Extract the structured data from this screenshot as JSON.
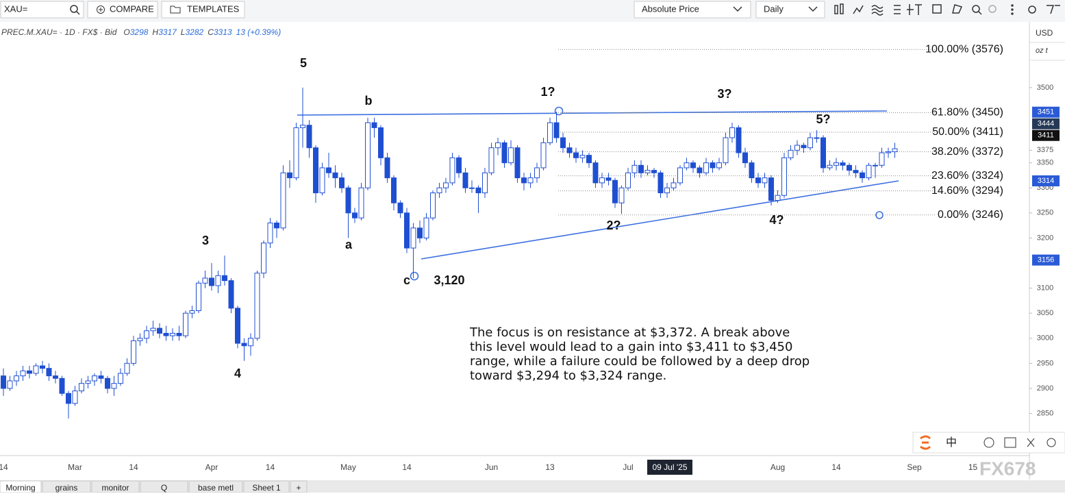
{
  "toolbar": {
    "search": "XAU=",
    "compare": "COMPARE",
    "templates": "TEMPLATES",
    "price_mode": "Absolute Price",
    "interval": "Daily"
  },
  "legend": {
    "symbol": "PREC.M.XAU= · 1D · FX$ · Bid",
    "ohlc": [
      {
        "label": "O",
        "value": "3298"
      },
      {
        "label": "H",
        "value": "3317"
      },
      {
        "label": "L",
        "value": "3282"
      },
      {
        "label": "C",
        "value": "3313"
      }
    ],
    "change": "13 (+0.39%)"
  },
  "axis_units": {
    "currency": "USD",
    "unit": "oz t"
  },
  "crosshair_date": "09 Jul '25",
  "commentary": [
    "The focus is on resistance at $3,372. A break above",
    "this level would lead to a gain into $3,411 to $3,450",
    "range, while a failure could be followed by a deep drop",
    "toward $3,294 to $3,324 range."
  ],
  "tabs": [
    "Morning",
    "grains",
    "monitor",
    "Q",
    "base metl",
    "Sheet 1",
    "+"
  ],
  "dock": {
    "lang": "中"
  },
  "watermark": "FX678",
  "chart_data": {
    "type": "candlestick",
    "categories": [
      "14",
      null,
      null,
      null,
      null,
      null,
      null,
      null,
      null,
      null,
      null,
      "Mar",
      null,
      null,
      null,
      null,
      null,
      null,
      null,
      null,
      "14",
      null,
      null,
      null,
      null,
      null,
      null,
      null,
      null,
      null,
      null,
      null,
      "Apr",
      null,
      null,
      null,
      null,
      null,
      null,
      null,
      null,
      "14",
      null,
      null,
      null,
      null,
      null,
      null,
      null,
      null,
      null,
      null,
      null,
      "May",
      null,
      null,
      null,
      null,
      null,
      null,
      null,
      null,
      "14",
      null,
      null,
      null,
      null,
      null,
      null,
      null,
      null,
      null,
      null,
      null,
      null,
      "Jun",
      null,
      null,
      null,
      null,
      null,
      null,
      null,
      null,
      "13",
      null,
      null,
      null,
      null,
      null,
      null,
      null,
      null,
      null,
      null,
      null,
      "Jul",
      null,
      null,
      null,
      null,
      null,
      null,
      null,
      null,
      null,
      null,
      null,
      null,
      null,
      null,
      null,
      null,
      null,
      null,
      null,
      null,
      null,
      null,
      "Aug",
      null,
      null,
      null,
      null,
      null,
      null,
      null,
      null,
      "14",
      null,
      null,
      null,
      null,
      null,
      null,
      null,
      null,
      null,
      null,
      null,
      "Sep",
      null,
      null,
      null,
      null,
      null,
      null,
      null,
      null,
      "15"
    ],
    "ohlc": [
      [
        2925,
        2940,
        2885,
        2900
      ],
      [
        2900,
        2925,
        2895,
        2915
      ],
      [
        2915,
        2935,
        2905,
        2925
      ],
      [
        2925,
        2945,
        2915,
        2935
      ],
      [
        2935,
        2945,
        2920,
        2930
      ],
      [
        2930,
        2950,
        2925,
        2945
      ],
      [
        2945,
        2955,
        2930,
        2940
      ],
      [
        2940,
        2950,
        2915,
        2925
      ],
      [
        2925,
        2935,
        2910,
        2920
      ],
      [
        2920,
        2925,
        2885,
        2890
      ],
      [
        2890,
        2895,
        2840,
        2870
      ],
      [
        2870,
        2905,
        2865,
        2895
      ],
      [
        2895,
        2920,
        2890,
        2910
      ],
      [
        2910,
        2925,
        2900,
        2915
      ],
      [
        2915,
        2930,
        2905,
        2925
      ],
      [
        2925,
        2935,
        2910,
        2920
      ],
      [
        2920,
        2925,
        2890,
        2900
      ],
      [
        2900,
        2925,
        2885,
        2910
      ],
      [
        2910,
        2940,
        2905,
        2930
      ],
      [
        2930,
        2960,
        2925,
        2950
      ],
      [
        2950,
        3005,
        2945,
        2995
      ],
      [
        2995,
        3010,
        2985,
        3000
      ],
      [
        3000,
        3025,
        2990,
        3015
      ],
      [
        3015,
        3035,
        3005,
        3020
      ],
      [
        3020,
        3030,
        3000,
        3010
      ],
      [
        3010,
        3025,
        2995,
        3005
      ],
      [
        3005,
        3020,
        2995,
        3010
      ],
      [
        3010,
        3025,
        2995,
        3005
      ],
      [
        3005,
        3055,
        3000,
        3050
      ],
      [
        3050,
        3065,
        3040,
        3055
      ],
      [
        3055,
        3115,
        3050,
        3110
      ],
      [
        3110,
        3135,
        3100,
        3120
      ],
      [
        3120,
        3150,
        3095,
        3105
      ],
      [
        3105,
        3135,
        3090,
        3125
      ],
      [
        3125,
        3165,
        3105,
        3115
      ],
      [
        3115,
        3120,
        3050,
        3060
      ],
      [
        3060,
        3065,
        2980,
        2990
      ],
      [
        2990,
        3000,
        2955,
        2985
      ],
      [
        2985,
        3010,
        2965,
        3000
      ],
      [
        3000,
        3135,
        2995,
        3130
      ],
      [
        3130,
        3195,
        3120,
        3190
      ],
      [
        3190,
        3240,
        3180,
        3230
      ],
      [
        3230,
        3235,
        3200,
        3220
      ],
      [
        3220,
        3345,
        3215,
        3330
      ],
      [
        3330,
        3355,
        3300,
        3320
      ],
      [
        3320,
        3430,
        3315,
        3420
      ],
      [
        3420,
        3500,
        3380,
        3425
      ],
      [
        3425,
        3435,
        3360,
        3380
      ],
      [
        3380,
        3385,
        3270,
        3290
      ],
      [
        3290,
        3350,
        3285,
        3340
      ],
      [
        3340,
        3370,
        3320,
        3330
      ],
      [
        3330,
        3345,
        3300,
        3320
      ],
      [
        3320,
        3330,
        3290,
        3300
      ],
      [
        3300,
        3305,
        3200,
        3250
      ],
      [
        3250,
        3260,
        3230,
        3240
      ],
      [
        3240,
        3310,
        3235,
        3300
      ],
      [
        3300,
        3440,
        3295,
        3430
      ],
      [
        3430,
        3440,
        3400,
        3420
      ],
      [
        3420,
        3425,
        3345,
        3360
      ],
      [
        3360,
        3370,
        3310,
        3320
      ],
      [
        3320,
        3325,
        3255,
        3270
      ],
      [
        3270,
        3275,
        3240,
        3250
      ],
      [
        3250,
        3260,
        3170,
        3180
      ],
      [
        3180,
        3230,
        3120,
        3220
      ],
      [
        3220,
        3235,
        3190,
        3200
      ],
      [
        3200,
        3250,
        3195,
        3240
      ],
      [
        3240,
        3295,
        3235,
        3290
      ],
      [
        3290,
        3310,
        3280,
        3300
      ],
      [
        3300,
        3320,
        3290,
        3310
      ],
      [
        3310,
        3370,
        3305,
        3360
      ],
      [
        3360,
        3365,
        3320,
        3330
      ],
      [
        3330,
        3340,
        3290,
        3300
      ],
      [
        3300,
        3315,
        3290,
        3300
      ],
      [
        3300,
        3305,
        3250,
        3290
      ],
      [
        3290,
        3340,
        3280,
        3330
      ],
      [
        3330,
        3390,
        3325,
        3380
      ],
      [
        3380,
        3400,
        3365,
        3390
      ],
      [
        3390,
        3395,
        3340,
        3350
      ],
      [
        3350,
        3395,
        3345,
        3380
      ],
      [
        3380,
        3385,
        3310,
        3320
      ],
      [
        3320,
        3330,
        3295,
        3310
      ],
      [
        3310,
        3330,
        3300,
        3320
      ],
      [
        3320,
        3350,
        3310,
        3340
      ],
      [
        3340,
        3400,
        3335,
        3390
      ],
      [
        3390,
        3440,
        3385,
        3430
      ],
      [
        3430,
        3452,
        3390,
        3400
      ],
      [
        3400,
        3410,
        3370,
        3380
      ],
      [
        3380,
        3390,
        3360,
        3370
      ],
      [
        3370,
        3380,
        3350,
        3360
      ],
      [
        3360,
        3375,
        3350,
        3365
      ],
      [
        3365,
        3370,
        3340,
        3350
      ],
      [
        3350,
        3355,
        3300,
        3310
      ],
      [
        3310,
        3330,
        3300,
        3320
      ],
      [
        3320,
        3330,
        3305,
        3315
      ],
      [
        3315,
        3320,
        3260,
        3270
      ],
      [
        3270,
        3305,
        3248,
        3300
      ],
      [
        3300,
        3340,
        3295,
        3330
      ],
      [
        3330,
        3355,
        3320,
        3345
      ],
      [
        3345,
        3355,
        3320,
        3330
      ],
      [
        3330,
        3345,
        3325,
        3335
      ],
      [
        3335,
        3340,
        3320,
        3330
      ],
      [
        3330,
        3335,
        3280,
        3290
      ],
      [
        3290,
        3310,
        3280,
        3300
      ],
      [
        3300,
        3320,
        3295,
        3310
      ],
      [
        3310,
        3345,
        3305,
        3340
      ],
      [
        3340,
        3360,
        3335,
        3350
      ],
      [
        3350,
        3355,
        3330,
        3340
      ],
      [
        3340,
        3345,
        3320,
        3330
      ],
      [
        3330,
        3360,
        3325,
        3350
      ],
      [
        3350,
        3355,
        3330,
        3340
      ],
      [
        3340,
        3360,
        3335,
        3350
      ],
      [
        3350,
        3410,
        3345,
        3400
      ],
      [
        3400,
        3430,
        3390,
        3420
      ],
      [
        3420,
        3425,
        3360,
        3370
      ],
      [
        3370,
        3380,
        3340,
        3350
      ],
      [
        3350,
        3355,
        3310,
        3320
      ],
      [
        3320,
        3330,
        3300,
        3310
      ],
      [
        3310,
        3330,
        3300,
        3320
      ],
      [
        3320,
        3325,
        3265,
        3275
      ],
      [
        3275,
        3295,
        3270,
        3285
      ],
      [
        3285,
        3370,
        3280,
        3360
      ],
      [
        3360,
        3385,
        3355,
        3375
      ],
      [
        3375,
        3395,
        3365,
        3385
      ],
      [
        3385,
        3390,
        3370,
        3380
      ],
      [
        3380,
        3410,
        3375,
        3400
      ],
      [
        3400,
        3415,
        3390,
        3400
      ],
      [
        3400,
        3405,
        3330,
        3340
      ],
      [
        3340,
        3355,
        3335,
        3345
      ],
      [
        3345,
        3360,
        3335,
        3350
      ],
      [
        3350,
        3355,
        3335,
        3345
      ],
      [
        3345,
        3350,
        3325,
        3335
      ],
      [
        3335,
        3345,
        3320,
        3330
      ],
      [
        3330,
        3335,
        3310,
        3320
      ],
      [
        3320,
        3350,
        3315,
        3345
      ],
      [
        3345,
        3350,
        3320,
        3345
      ],
      [
        3345,
        3380,
        3340,
        3370
      ],
      [
        3370,
        3380,
        3360,
        3372
      ],
      [
        3372,
        3390,
        3360,
        3378
      ],
      null,
      null,
      null,
      null,
      null,
      null,
      null,
      null,
      null,
      null,
      null,
      null
    ],
    "up_color": "#ffffff",
    "down_color": "#1f4fd1",
    "edge_color": "#1f4fd1",
    "ylim": [
      2766,
      3631
    ],
    "yticks": [
      2850,
      2900,
      2950,
      3000,
      3050,
      3100,
      3200,
      3250,
      3300,
      3350,
      3375,
      3500
    ],
    "fib_levels": [
      {
        "value": 3576,
        "label": "100.00% (3576)"
      },
      {
        "value": 3450,
        "label": "61.80% (3450)"
      },
      {
        "value": 3411,
        "label": "50.00% (3411)"
      },
      {
        "value": 3372,
        "label": "38.20% (3372)"
      },
      {
        "value": 3324,
        "label": "23.60% (3324)"
      },
      {
        "value": 3294,
        "label": "14.60% (3294)"
      },
      {
        "value": 3246,
        "label": "0.00% (3246)"
      }
    ],
    "price_badges": [
      {
        "value": 3451,
        "color": "#2a5bd7"
      },
      {
        "value": 3444,
        "color": "#263957"
      },
      {
        "value": 3411,
        "color": "#111111"
      },
      {
        "value": 3314,
        "color": "#2a5bd7"
      },
      {
        "value": 3156,
        "color": "#2a5bd7"
      }
    ],
    "wave_labels": [
      "5",
      "b",
      "1?",
      "3?",
      "5?",
      "3",
      "a",
      "c",
      "3,120",
      "2?",
      "4?",
      "4"
    ]
  }
}
